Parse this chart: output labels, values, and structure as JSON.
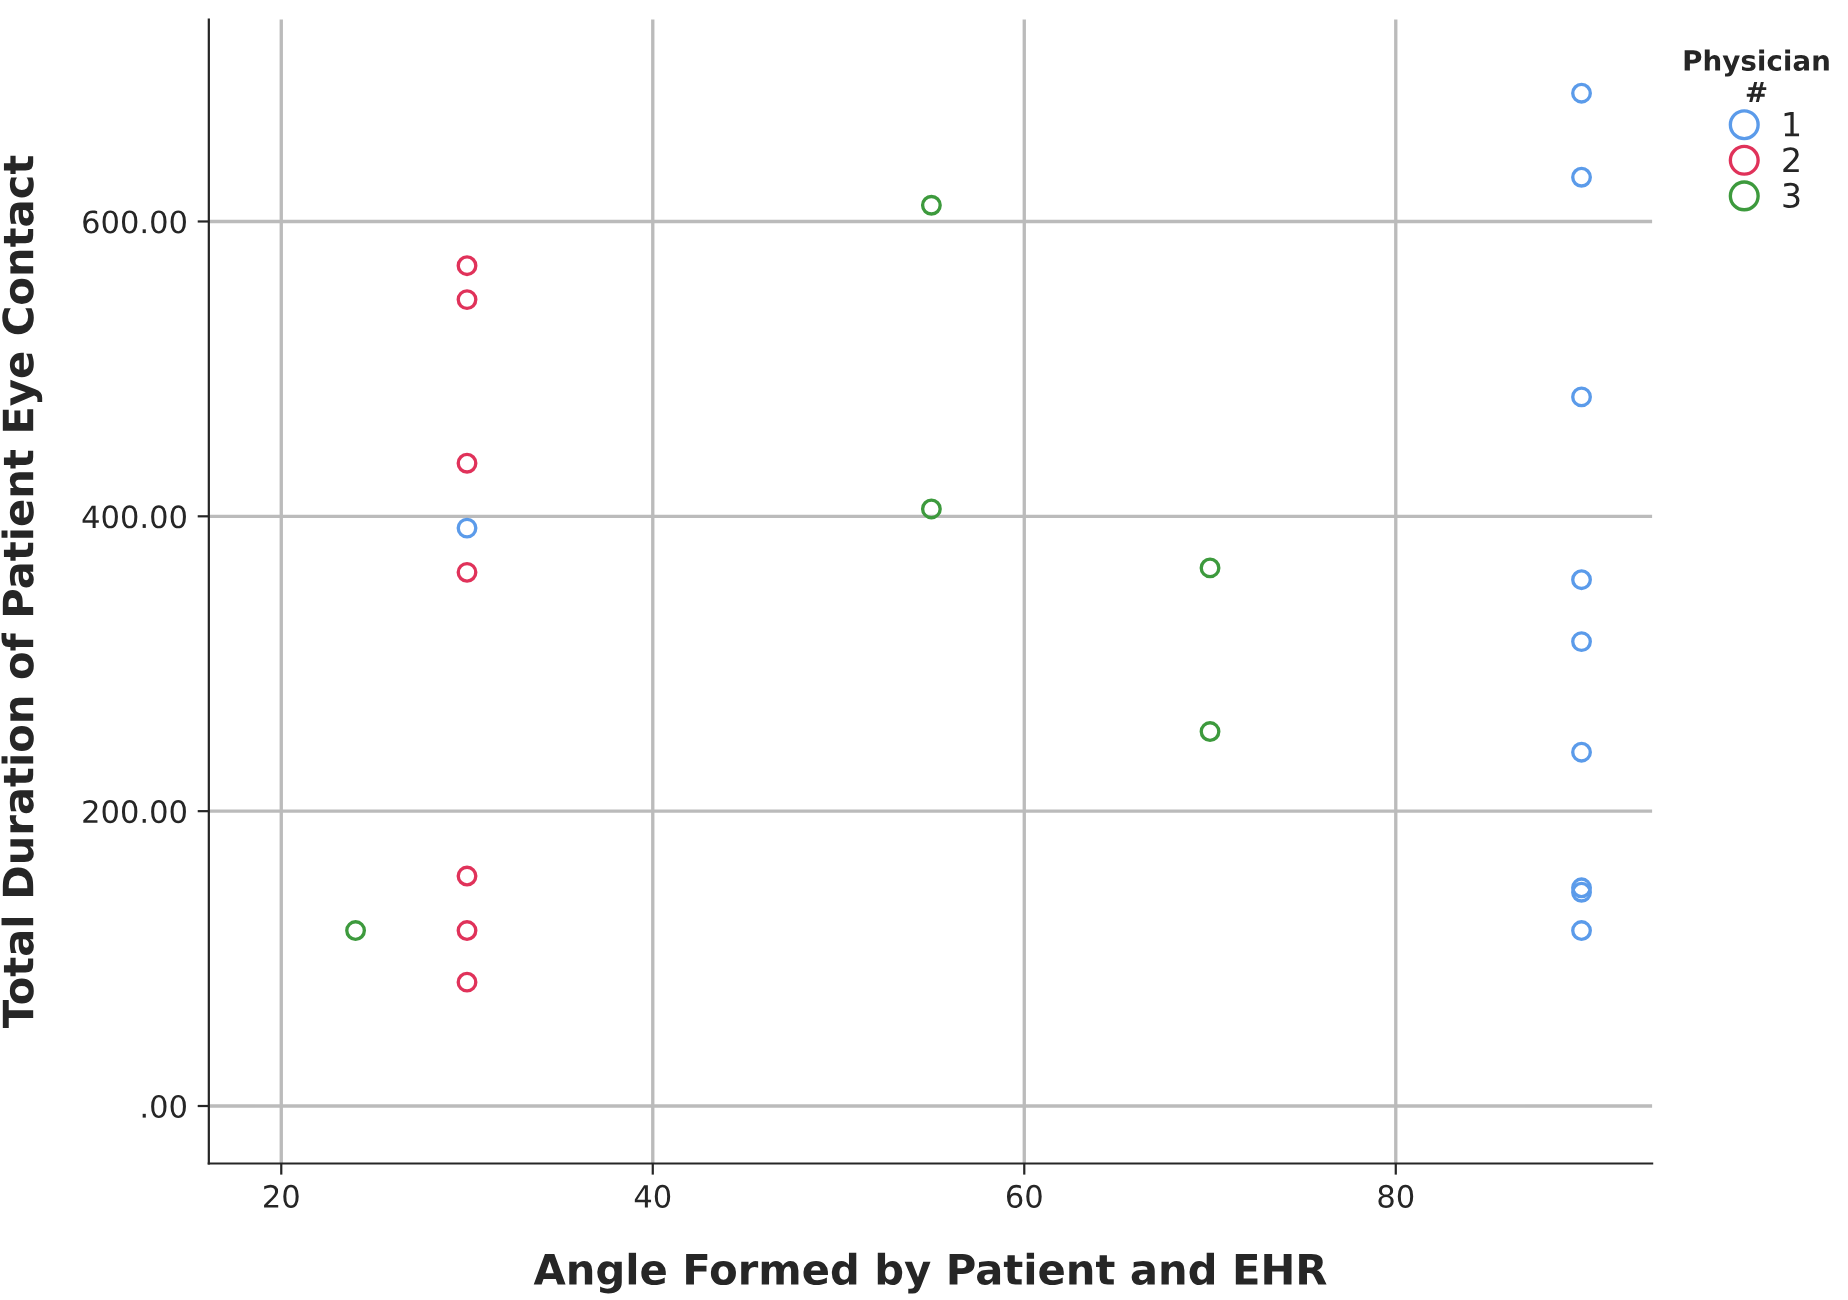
{
  "chart_data": {
    "type": "scatter",
    "xlabel": "Angle Formed by Patient and EHR",
    "ylabel": "Total Duration of Patient Eye Contact",
    "legend_title": "Physician\n#",
    "series": [
      {
        "name": "1",
        "color": "#5b9bea",
        "x": [
          90,
          90,
          90,
          90,
          90,
          90,
          90,
          90,
          90,
          30
        ],
        "values": [
          687,
          630,
          481,
          357,
          315,
          240,
          148,
          145,
          119,
          392
        ]
      },
      {
        "name": "2",
        "color": "#e0325a",
        "x": [
          30,
          30,
          30,
          30,
          30,
          30,
          30
        ],
        "values": [
          570,
          547,
          436,
          362,
          156,
          119,
          84
        ]
      },
      {
        "name": "3",
        "color": "#3d9a3d",
        "x": [
          24,
          55,
          55,
          70,
          70
        ],
        "values": [
          119,
          611,
          405,
          365,
          254
        ]
      }
    ],
    "xlim": [
      16.1,
      93.8
    ],
    "ylim": [
      -39,
      737
    ],
    "xticks": [
      20,
      40,
      60,
      80
    ],
    "yticks": [
      {
        "value": 0,
        "label": ".00"
      },
      {
        "value": 200,
        "label": "200.00"
      },
      {
        "value": 400,
        "label": "400.00"
      },
      {
        "value": 600,
        "label": "600.00"
      }
    ],
    "grid": true,
    "legend": "top right",
    "marker": "circle"
  }
}
